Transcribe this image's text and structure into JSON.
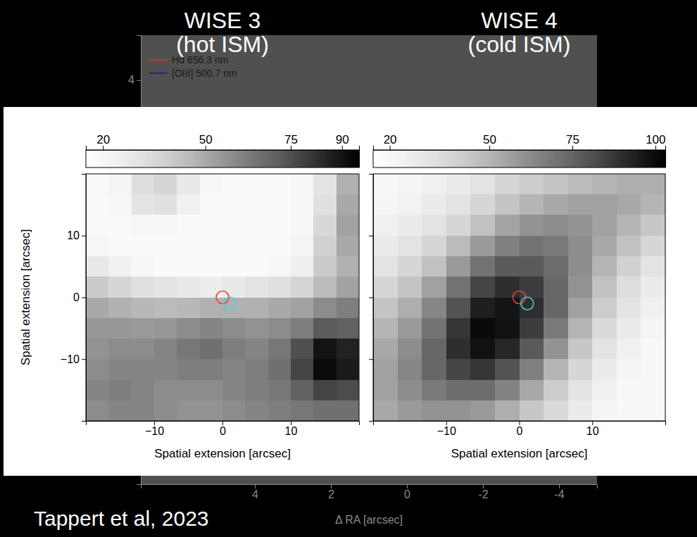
{
  "chart_data": [
    {
      "type": "heatmap",
      "title": "WISE 3",
      "subtitle": "(hot ISM)",
      "x_label": "Spatial extension [arcsec]",
      "y_label": "Spatial extension [arcsec]",
      "xlim": [
        -20,
        20
      ],
      "ylim": [
        -20,
        20
      ],
      "xticks": [
        {
          "value": -10,
          "label": "−10"
        },
        0,
        10
      ],
      "yticks": [
        {
          "value": -10,
          "label": "−10"
        },
        0,
        10
      ],
      "x": [
        -18.33,
        -15,
        -11.67,
        -8.33,
        -5,
        -1.67,
        1.67,
        5,
        8.33,
        11.67,
        15,
        18.33
      ],
      "y": [
        18.33,
        15,
        11.67,
        8.33,
        5,
        1.67,
        -1.67,
        -5,
        -8.33,
        -11.67,
        -15,
        -18.33
      ],
      "z": [
        [
          18,
          22,
          33,
          36,
          28,
          20,
          18,
          18,
          18,
          20,
          30,
          48
        ],
        [
          18,
          20,
          30,
          32,
          24,
          18,
          18,
          18,
          18,
          20,
          32,
          50
        ],
        [
          18,
          18,
          20,
          20,
          18,
          18,
          18,
          18,
          18,
          20,
          35,
          52
        ],
        [
          20,
          18,
          18,
          18,
          18,
          18,
          18,
          18,
          18,
          22,
          38,
          50
        ],
        [
          28,
          24,
          20,
          18,
          18,
          18,
          18,
          18,
          20,
          25,
          40,
          48
        ],
        [
          40,
          36,
          32,
          30,
          28,
          26,
          28,
          30,
          32,
          36,
          45,
          52
        ],
        [
          50,
          48,
          46,
          45,
          46,
          48,
          48,
          48,
          50,
          52,
          58,
          62
        ],
        [
          55,
          55,
          54,
          55,
          58,
          60,
          58,
          56,
          58,
          62,
          72,
          70
        ],
        [
          56,
          58,
          58,
          60,
          64,
          66,
          62,
          60,
          64,
          75,
          90,
          86
        ],
        [
          58,
          60,
          60,
          60,
          62,
          62,
          60,
          62,
          66,
          78,
          92,
          88
        ],
        [
          60,
          62,
          60,
          58,
          58,
          58,
          60,
          62,
          64,
          70,
          78,
          76
        ],
        [
          58,
          60,
          60,
          58,
          56,
          56,
          58,
          60,
          62,
          64,
          66,
          66
        ]
      ],
      "colorbar": {
        "range": [
          15,
          95
        ],
        "ticks": [
          20,
          50,
          75,
          90
        ]
      },
      "circles": [
        {
          "x": 0,
          "y": 0,
          "color": "#e8413a"
        },
        {
          "x": 1.1,
          "y": -1.0,
          "color": "#3fd6d6"
        }
      ]
    },
    {
      "type": "heatmap",
      "title": "WISE 4",
      "subtitle": "(cold ISM)",
      "x_label": "Spatial extension [arcsec]",
      "xlim": [
        -20,
        20
      ],
      "ylim": [
        -20,
        20
      ],
      "xticks": [
        {
          "value": -10,
          "label": "−10"
        },
        0,
        10
      ],
      "yticks": [
        -10,
        0,
        10
      ],
      "tick_labels": "x",
      "x": [
        -18.33,
        -15,
        -11.67,
        -8.33,
        -5,
        -1.67,
        1.67,
        5,
        8.33,
        11.67,
        15,
        18.33
      ],
      "y": [
        18.33,
        15,
        11.67,
        8.33,
        5,
        1.67,
        -1.67,
        -5,
        -8.33,
        -11.67,
        -15,
        -18.33
      ],
      "z": [
        [
          20,
          22,
          25,
          28,
          32,
          38,
          42,
          45,
          48,
          50,
          52,
          52
        ],
        [
          22,
          24,
          28,
          32,
          38,
          45,
          50,
          54,
          56,
          56,
          54,
          50
        ],
        [
          25,
          28,
          32,
          38,
          46,
          55,
          60,
          62,
          60,
          56,
          50,
          44
        ],
        [
          28,
          32,
          38,
          48,
          58,
          66,
          70,
          68,
          62,
          54,
          46,
          38
        ],
        [
          32,
          38,
          46,
          58,
          70,
          78,
          78,
          72,
          62,
          50,
          40,
          32
        ],
        [
          38,
          45,
          56,
          70,
          84,
          90,
          86,
          74,
          60,
          46,
          35,
          28
        ],
        [
          45,
          52,
          64,
          80,
          94,
          97,
          90,
          74,
          56,
          42,
          32,
          25
        ],
        [
          50,
          58,
          70,
          88,
          100,
          98,
          86,
          68,
          50,
          36,
          28,
          22
        ],
        [
          54,
          62,
          74,
          90,
          98,
          92,
          78,
          60,
          44,
          32,
          25,
          20
        ],
        [
          56,
          64,
          74,
          84,
          88,
          80,
          66,
          50,
          38,
          28,
          22,
          20
        ],
        [
          56,
          62,
          68,
          72,
          72,
          65,
          54,
          42,
          32,
          25,
          20,
          20
        ],
        [
          54,
          58,
          60,
          60,
          58,
          52,
          44,
          36,
          28,
          22,
          20,
          20
        ]
      ],
      "colorbar": {
        "range": [
          15,
          103
        ],
        "ticks": [
          20,
          50,
          75,
          100
        ]
      },
      "circles": [
        {
          "x": 0,
          "y": 0,
          "color": "#e8413a"
        },
        {
          "x": 1.1,
          "y": -1.0,
          "color": "#3fd6d6"
        }
      ]
    }
  ],
  "background_figure": {
    "x_label": "Δ RA [arcsec]",
    "xlim": [
      7,
      -5
    ],
    "xticks": [
      4,
      2,
      0,
      -2,
      -4
    ],
    "ylim": [
      -5,
      5
    ],
    "yticks": [
      4
    ],
    "legend_entries": [
      {
        "name": "Hα 656.3 nm",
        "color": "#c0392b"
      },
      {
        "name": "[OIII] 500.7 nm",
        "color": "#1f2a7a"
      }
    ]
  },
  "credit": "Tappert et al, 2023"
}
